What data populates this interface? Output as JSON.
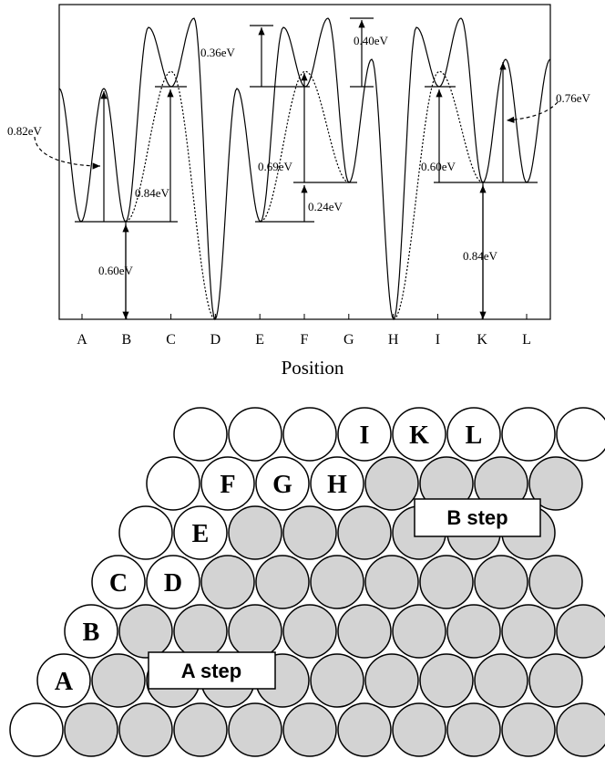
{
  "plot": {
    "energy_labels": [
      "0.82eV",
      "0.84eV",
      "0.60eV",
      "0.36eV",
      "0.40eV",
      "0.69eV",
      "0.24eV",
      "0.60eV",
      "0.76eV",
      "0.84eV"
    ],
    "positions": [
      "A",
      "B",
      "C",
      "D",
      "E",
      "F",
      "G",
      "H",
      "I",
      "K",
      "L"
    ],
    "x_axis_label": "Position"
  },
  "atoms": {
    "labels": [
      "A",
      "B",
      "C",
      "D",
      "E",
      "F",
      "G",
      "H",
      "I",
      "K",
      "L"
    ],
    "steps": [
      "A step",
      "B step"
    ]
  }
}
